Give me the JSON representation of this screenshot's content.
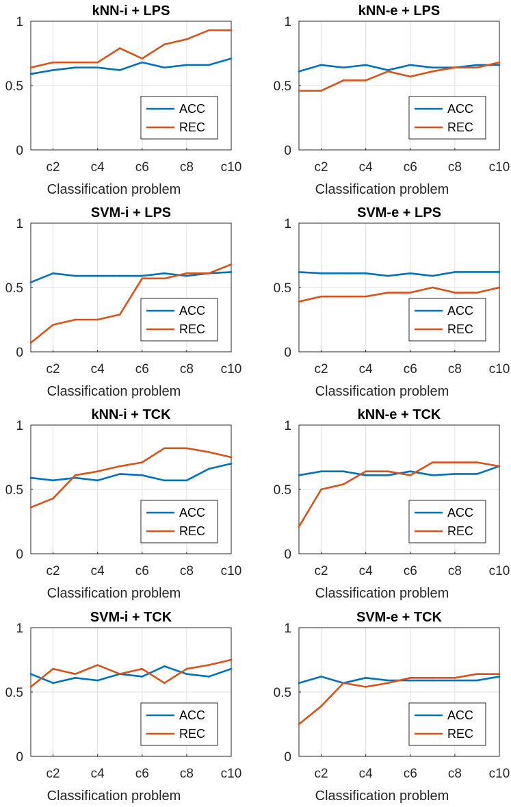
{
  "chart_data": [
    {
      "type": "line",
      "title": "kNN-i + LPS",
      "xlabel": "Classification problem",
      "ylabel": "",
      "x": [
        1,
        2,
        3,
        4,
        5,
        6,
        7,
        8,
        9,
        10
      ],
      "xticks": [
        "c2",
        "c4",
        "c6",
        "c8",
        "c10"
      ],
      "xtick_positions": [
        2,
        4,
        6,
        8,
        10
      ],
      "yticks": [
        "0",
        "0.5",
        "1"
      ],
      "ylim": [
        0,
        1
      ],
      "legend_position": "bottom-right",
      "series": [
        {
          "name": "ACC",
          "color": "#0072bd",
          "values": [
            0.59,
            0.62,
            0.64,
            0.64,
            0.62,
            0.68,
            0.64,
            0.66,
            0.66,
            0.71
          ]
        },
        {
          "name": "REC",
          "color": "#d95319",
          "values": [
            0.64,
            0.68,
            0.68,
            0.68,
            0.79,
            0.71,
            0.82,
            0.86,
            0.93,
            0.93
          ]
        }
      ]
    },
    {
      "type": "line",
      "title": "kNN-e + LPS",
      "xlabel": "Classification problem",
      "ylabel": "",
      "x": [
        1,
        2,
        3,
        4,
        5,
        6,
        7,
        8,
        9,
        10
      ],
      "xticks": [
        "c2",
        "c4",
        "c6",
        "c8",
        "c10"
      ],
      "xtick_positions": [
        2,
        4,
        6,
        8,
        10
      ],
      "yticks": [
        "0",
        "0.5",
        "1"
      ],
      "ylim": [
        0,
        1
      ],
      "legend_position": "bottom-right",
      "series": [
        {
          "name": "ACC",
          "color": "#0072bd",
          "values": [
            0.61,
            0.66,
            0.64,
            0.66,
            0.62,
            0.66,
            0.64,
            0.64,
            0.66,
            0.66
          ]
        },
        {
          "name": "REC",
          "color": "#d95319",
          "values": [
            0.46,
            0.46,
            0.54,
            0.54,
            0.61,
            0.57,
            0.61,
            0.64,
            0.64,
            0.68
          ]
        }
      ]
    },
    {
      "type": "line",
      "title": "SVM-i + LPS",
      "xlabel": "Classification problem",
      "ylabel": "",
      "x": [
        1,
        2,
        3,
        4,
        5,
        6,
        7,
        8,
        9,
        10
      ],
      "xticks": [
        "c2",
        "c4",
        "c6",
        "c8",
        "c10"
      ],
      "xtick_positions": [
        2,
        4,
        6,
        8,
        10
      ],
      "yticks": [
        "0",
        "0.5",
        "1"
      ],
      "ylim": [
        0,
        1
      ],
      "legend_position": "bottom-right",
      "series": [
        {
          "name": "ACC",
          "color": "#0072bd",
          "values": [
            0.54,
            0.61,
            0.59,
            0.59,
            0.59,
            0.59,
            0.61,
            0.59,
            0.61,
            0.62
          ]
        },
        {
          "name": "REC",
          "color": "#d95319",
          "values": [
            0.07,
            0.21,
            0.25,
            0.25,
            0.29,
            0.57,
            0.57,
            0.61,
            0.61,
            0.68
          ]
        }
      ]
    },
    {
      "type": "line",
      "title": "SVM-e + LPS",
      "xlabel": "Classification problem",
      "ylabel": "",
      "x": [
        1,
        2,
        3,
        4,
        5,
        6,
        7,
        8,
        9,
        10
      ],
      "xticks": [
        "c2",
        "c4",
        "c6",
        "c8",
        "c10"
      ],
      "xtick_positions": [
        2,
        4,
        6,
        8,
        10
      ],
      "yticks": [
        "0",
        "0.5",
        "1"
      ],
      "ylim": [
        0,
        1
      ],
      "legend_position": "bottom-right",
      "series": [
        {
          "name": "ACC",
          "color": "#0072bd",
          "values": [
            0.62,
            0.61,
            0.61,
            0.61,
            0.59,
            0.61,
            0.59,
            0.62,
            0.62,
            0.62
          ]
        },
        {
          "name": "REC",
          "color": "#d95319",
          "values": [
            0.39,
            0.43,
            0.43,
            0.43,
            0.46,
            0.46,
            0.5,
            0.46,
            0.46,
            0.5
          ]
        }
      ]
    },
    {
      "type": "line",
      "title": "kNN-i + TCK",
      "xlabel": "Classification problem",
      "ylabel": "",
      "x": [
        1,
        2,
        3,
        4,
        5,
        6,
        7,
        8,
        9,
        10
      ],
      "xticks": [
        "c2",
        "c4",
        "c6",
        "c8",
        "c10"
      ],
      "xtick_positions": [
        2,
        4,
        6,
        8,
        10
      ],
      "yticks": [
        "0",
        "0.5",
        "1"
      ],
      "ylim": [
        0,
        1
      ],
      "legend_position": "bottom-right",
      "series": [
        {
          "name": "ACC",
          "color": "#0072bd",
          "values": [
            0.59,
            0.57,
            0.59,
            0.57,
            0.62,
            0.61,
            0.57,
            0.57,
            0.66,
            0.7
          ]
        },
        {
          "name": "REC",
          "color": "#d95319",
          "values": [
            0.36,
            0.43,
            0.61,
            0.64,
            0.68,
            0.71,
            0.82,
            0.82,
            0.79,
            0.75
          ]
        }
      ]
    },
    {
      "type": "line",
      "title": "kNN-e + TCK",
      "xlabel": "Classification problem",
      "ylabel": "",
      "x": [
        1,
        2,
        3,
        4,
        5,
        6,
        7,
        8,
        9,
        10
      ],
      "xticks": [
        "c2",
        "c4",
        "c6",
        "c8",
        "c10"
      ],
      "xtick_positions": [
        2,
        4,
        6,
        8,
        10
      ],
      "yticks": [
        "0",
        "0.5",
        "1"
      ],
      "ylim": [
        0,
        1
      ],
      "legend_position": "bottom-right",
      "series": [
        {
          "name": "ACC",
          "color": "#0072bd",
          "values": [
            0.61,
            0.64,
            0.64,
            0.61,
            0.61,
            0.64,
            0.61,
            0.62,
            0.62,
            0.68
          ]
        },
        {
          "name": "REC",
          "color": "#d95319",
          "values": [
            0.21,
            0.5,
            0.54,
            0.64,
            0.64,
            0.61,
            0.71,
            0.71,
            0.71,
            0.68
          ]
        }
      ]
    },
    {
      "type": "line",
      "title": "SVM-i + TCK",
      "xlabel": "Classification problem",
      "ylabel": "",
      "x": [
        1,
        2,
        3,
        4,
        5,
        6,
        7,
        8,
        9,
        10
      ],
      "xticks": [
        "c2",
        "c4",
        "c6",
        "c8",
        "c10"
      ],
      "xtick_positions": [
        2,
        4,
        6,
        8,
        10
      ],
      "yticks": [
        "0",
        "0.5",
        "1"
      ],
      "ylim": [
        0,
        1
      ],
      "legend_position": "bottom-right",
      "series": [
        {
          "name": "ACC",
          "color": "#0072bd",
          "values": [
            0.64,
            0.57,
            0.61,
            0.59,
            0.64,
            0.62,
            0.7,
            0.64,
            0.62,
            0.68
          ]
        },
        {
          "name": "REC",
          "color": "#d95319",
          "values": [
            0.54,
            0.68,
            0.64,
            0.71,
            0.64,
            0.68,
            0.57,
            0.68,
            0.71,
            0.75
          ]
        }
      ]
    },
    {
      "type": "line",
      "title": "SVM-e + TCK",
      "xlabel": "Classification problem",
      "ylabel": "",
      "x": [
        1,
        2,
        3,
        4,
        5,
        6,
        7,
        8,
        9,
        10
      ],
      "xticks": [
        "c2",
        "c4",
        "c6",
        "c8",
        "c10"
      ],
      "xtick_positions": [
        2,
        4,
        6,
        8,
        10
      ],
      "yticks": [
        "0",
        "0.5",
        "1"
      ],
      "ylim": [
        0,
        1
      ],
      "legend_position": "bottom-right",
      "series": [
        {
          "name": "ACC",
          "color": "#0072bd",
          "values": [
            0.57,
            0.62,
            0.57,
            0.61,
            0.59,
            0.59,
            0.59,
            0.59,
            0.59,
            0.62
          ]
        },
        {
          "name": "REC",
          "color": "#d95319",
          "values": [
            0.25,
            0.39,
            0.57,
            0.54,
            0.57,
            0.61,
            0.61,
            0.61,
            0.64,
            0.64
          ]
        }
      ]
    }
  ]
}
